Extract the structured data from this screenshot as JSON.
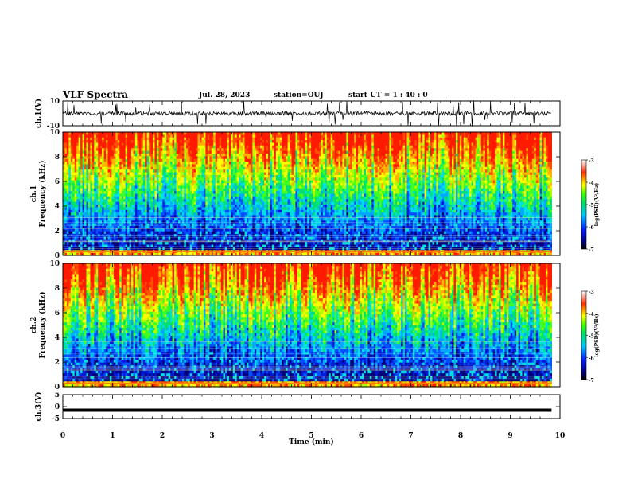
{
  "header": {
    "title": "VLF Spectra",
    "date": "Jul. 28, 2023",
    "station": "station=OUJ",
    "start": "start UT =  1 : 40 : 0"
  },
  "chart_data": [
    {
      "type": "line",
      "panel": "ch1-waveform",
      "ylabel": "ch.1(V)",
      "xlim": [
        0,
        10
      ],
      "ylim": [
        -10,
        10
      ],
      "yticks": [
        "10",
        "-10"
      ],
      "x": [
        0,
        9.83
      ],
      "baseline_value": 0,
      "series_color": "#000000"
    },
    {
      "type": "heatmap",
      "panel": "ch1-spectrogram",
      "ylabel_lines": [
        "ch.1",
        "Frequency (kHz)"
      ],
      "xlim": [
        0,
        10
      ],
      "ylim": [
        0,
        10
      ],
      "data_xmax": 9.83,
      "yticks": [
        "0",
        "2",
        "4",
        "6",
        "8",
        "10"
      ],
      "colorbar": {
        "label": "log(PSD)(V²/Hz)",
        "range": [
          -7,
          -3
        ],
        "ticks": [
          "-3",
          "-4",
          "-5",
          "-6",
          "-7"
        ]
      }
    },
    {
      "type": "heatmap",
      "panel": "ch2-spectrogram",
      "ylabel_lines": [
        "ch.2",
        "Frequency (kHz)"
      ],
      "xlim": [
        0,
        10
      ],
      "ylim": [
        0,
        10
      ],
      "data_xmax": 9.83,
      "yticks": [
        "0",
        "2",
        "4",
        "6",
        "8",
        "10"
      ],
      "colorbar": {
        "label": "log(PSD)(V²/Hz)",
        "range": [
          -7,
          -3
        ],
        "ticks": [
          "-3",
          "-4",
          "-5",
          "-6",
          "-7"
        ]
      }
    },
    {
      "type": "line",
      "panel": "ch3-waveform",
      "ylabel": "ch.3(V)",
      "xlim": [
        0,
        10
      ],
      "ylim": [
        -5,
        5
      ],
      "yticks": [
        "5",
        "0",
        "-5"
      ],
      "x": [
        0,
        9.83
      ],
      "values": [
        -1.5,
        -1.5
      ],
      "series_color": "#000000",
      "xlabel": "Time (min)",
      "xticks": [
        "0",
        "1",
        "2",
        "3",
        "4",
        "5",
        "6",
        "7",
        "8",
        "9",
        "10"
      ]
    }
  ]
}
